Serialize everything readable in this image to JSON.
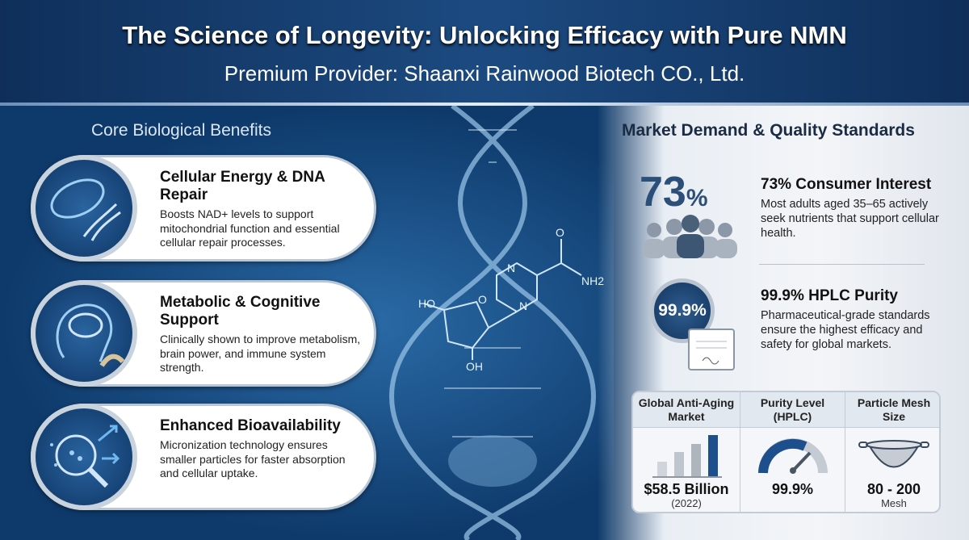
{
  "header": {
    "title": "The Science of Longevity: Unlocking Efficacy with Pure NMN",
    "subtitle": "Premium Provider: Shaanxi Rainwood Biotech CO., Ltd."
  },
  "left": {
    "title": "Core Biological Benefits",
    "cards": [
      {
        "icon": "mitochondria-dna-icon",
        "title": "Cellular Energy & DNA Repair",
        "desc": "Boosts NAD+ levels to support mitochondrial function and essential cellular repair processes."
      },
      {
        "icon": "brain-muscle-icon",
        "title": "Metabolic & Cognitive Support",
        "desc": "Clinically shown to improve metabolism, brain power, and immune system strength."
      },
      {
        "icon": "particles-magnifier-icon",
        "title": "Enhanced Bioavailability",
        "desc": "Micronization technology ensures smaller particles for faster absorption and cellular uptake."
      }
    ]
  },
  "molecule": {
    "ho": "HO",
    "oh": "OH",
    "o": "O",
    "n1": "N",
    "n2": "N",
    "nh2": "NH2",
    "o2": "O"
  },
  "right": {
    "title": "Market Demand & Quality Standards",
    "stat1": {
      "big": "73",
      "pct": "%",
      "title": "73% Consumer Interest",
      "desc": "Most adults aged 35–65 actively seek nutrients that support cellular health."
    },
    "stat2": {
      "badge": "99.9%",
      "title": "99.9% HPLC Purity",
      "desc": "Pharmaceutical-grade standards ensure the highest efficacy and safety for global markets."
    },
    "table": [
      {
        "header": "Global Anti-Aging Market",
        "value": "$58.5 Billion",
        "sub": "(2022)"
      },
      {
        "header": "Purity Level (HPLC)",
        "value": "99.9%",
        "sub": "",
        "gauge": 0.999
      },
      {
        "header": "Particle Mesh Size",
        "value": "80 - 200",
        "sub": "Mesh"
      }
    ]
  },
  "colors": {
    "navy": "#0e3a6b",
    "accent": "#1d5a9a",
    "light": "#f3f5f8"
  }
}
